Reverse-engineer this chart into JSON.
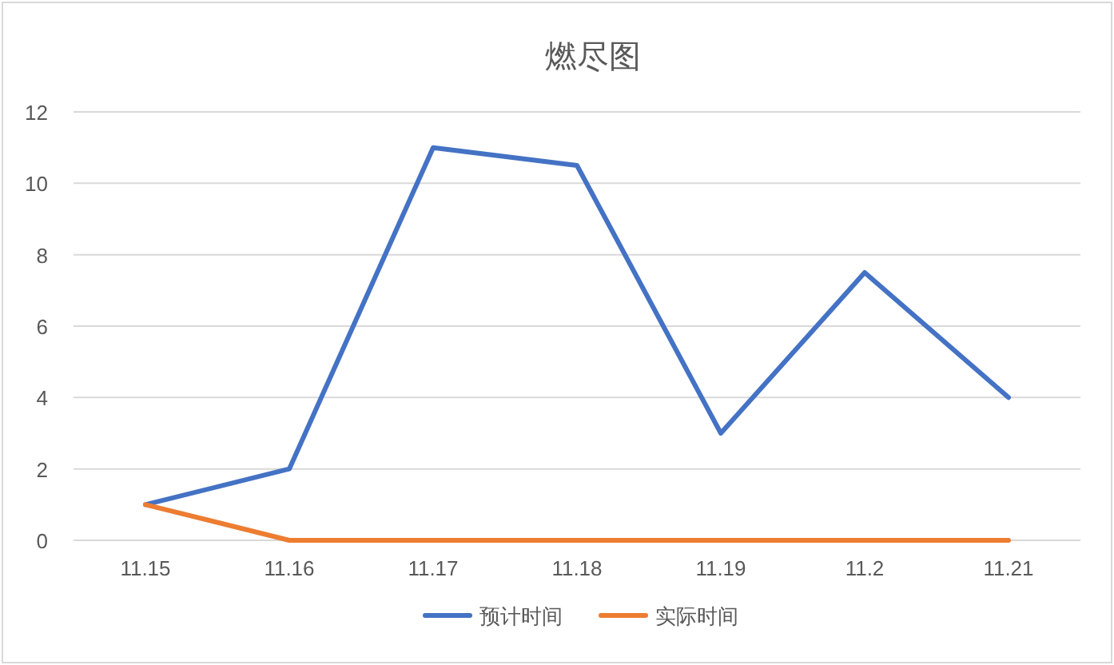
{
  "chart_data": {
    "type": "line",
    "title": "燃尽图",
    "categories": [
      "11.15",
      "11.16",
      "11.17",
      "11.18",
      "11.19",
      "11.2",
      "11.21"
    ],
    "series": [
      {
        "name": "预计时间",
        "color": "#4472c4",
        "values": [
          1,
          2,
          11,
          10.5,
          3,
          7.5,
          4
        ]
      },
      {
        "name": "实际时间",
        "color": "#ed7d31",
        "values": [
          1,
          0,
          0,
          0,
          0,
          0,
          0
        ]
      }
    ],
    "ylim": [
      0,
      12
    ],
    "yticks": [
      0,
      2,
      4,
      6,
      8,
      10,
      12
    ],
    "grid": "y",
    "legend": "bottom",
    "marker": "none",
    "line_style": "solid"
  }
}
